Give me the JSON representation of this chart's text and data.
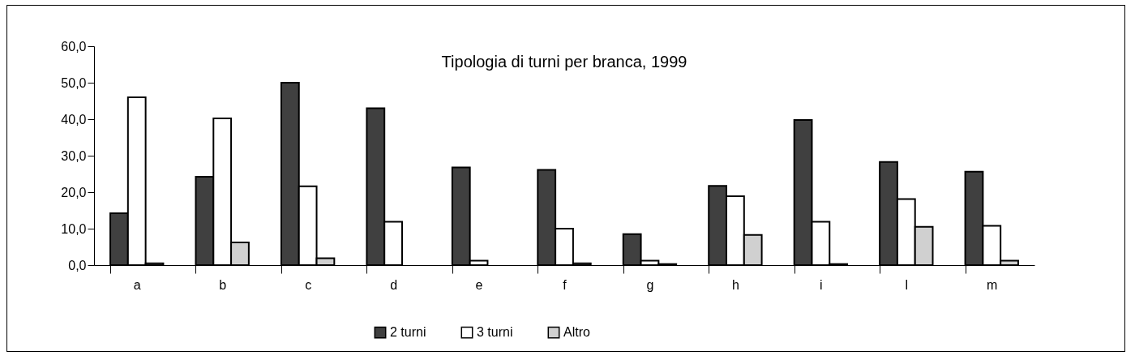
{
  "chart_data": {
    "type": "bar",
    "title": "Tipologia di turni per branca, 1999",
    "categories": [
      "a",
      "b",
      "c",
      "d",
      "e",
      "f",
      "g",
      "h",
      "i",
      "l",
      "m"
    ],
    "series": [
      {
        "name": "2 turni",
        "color": "#404040",
        "values": [
          14.2,
          24.2,
          50.0,
          43.0,
          26.8,
          26.1,
          8.5,
          21.7,
          39.8,
          28.3,
          25.6
        ]
      },
      {
        "name": "3 turni",
        "color": "#ffffff",
        "values": [
          46.0,
          40.2,
          21.6,
          11.9,
          1.2,
          10.0,
          1.2,
          18.9,
          11.9,
          18.1,
          10.8
        ]
      },
      {
        "name": "Altro",
        "color": "#d0d0d0",
        "values": [
          0.5,
          6.2,
          1.9,
          null,
          null,
          0.5,
          0.3,
          8.3,
          0.3,
          10.5,
          1.2
        ]
      }
    ],
    "ylim": [
      0,
      60
    ],
    "yticks": [
      {
        "value": 0,
        "label": "0,0"
      },
      {
        "value": 10,
        "label": "10,0"
      },
      {
        "value": 20,
        "label": "20,0"
      },
      {
        "value": 30,
        "label": "30,0"
      },
      {
        "value": 40,
        "label": "40,0"
      },
      {
        "value": 50,
        "label": "50,0"
      },
      {
        "value": 60,
        "label": "60,0"
      }
    ],
    "grid": false,
    "legend": "bottom"
  }
}
